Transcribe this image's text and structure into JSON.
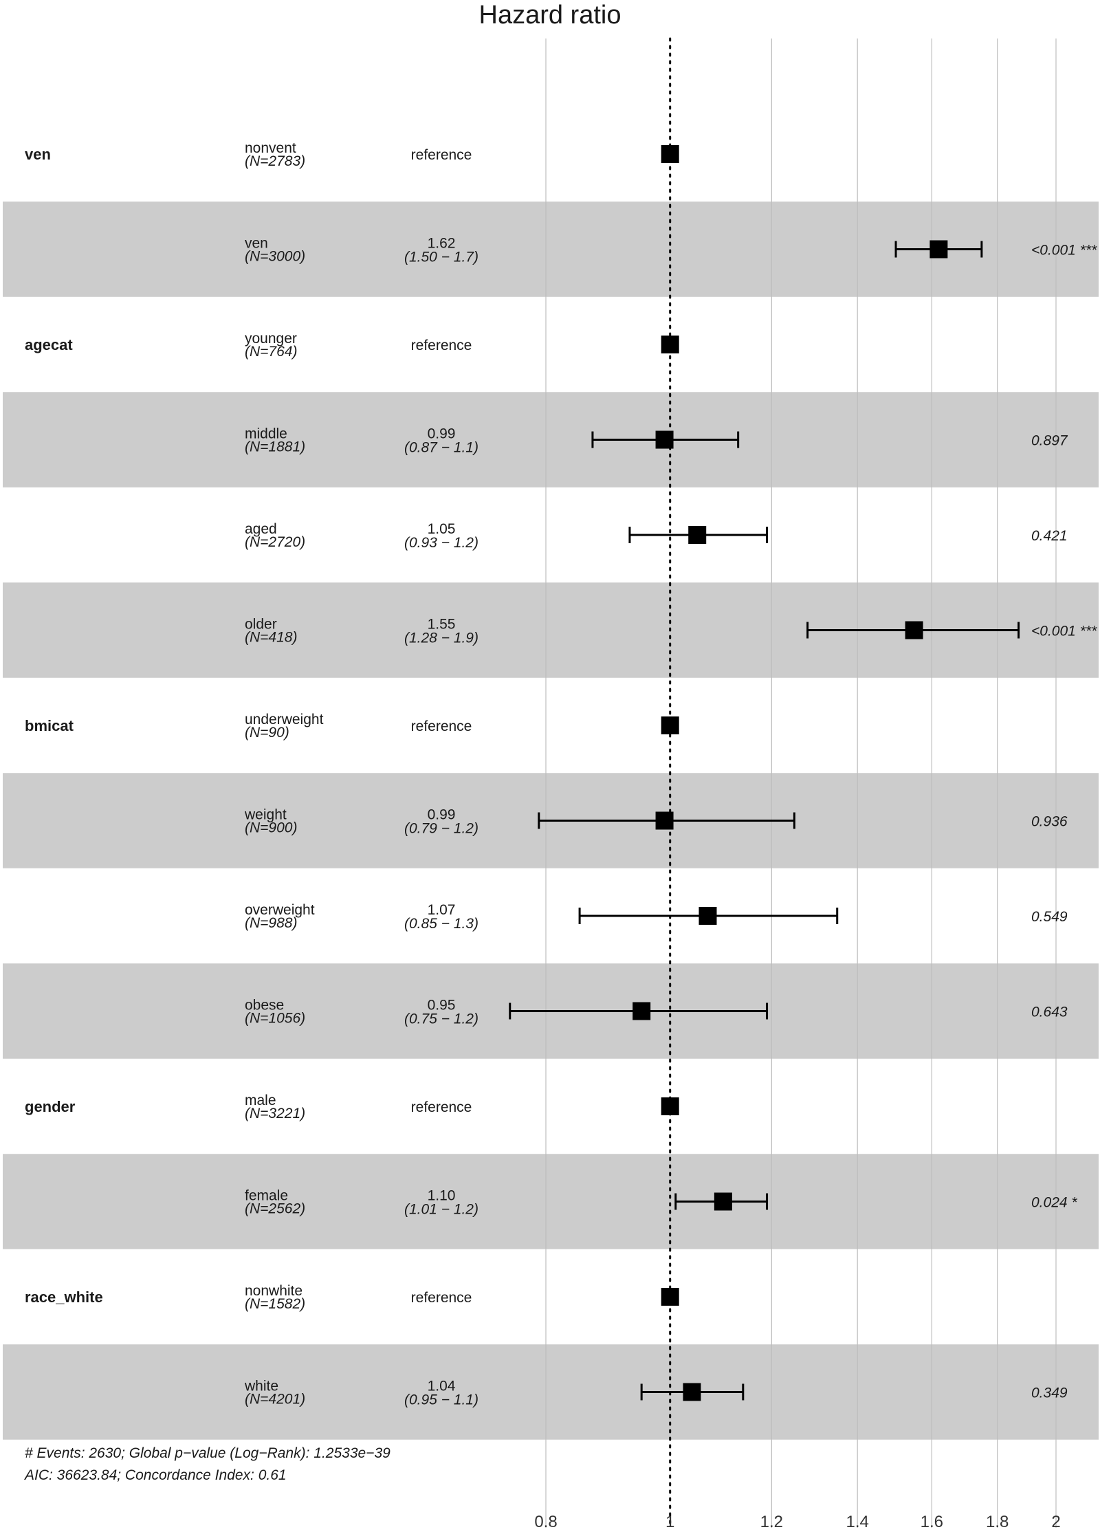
{
  "chart_data": {
    "type": "forest",
    "title": "Hazard ratio",
    "x_scale": "log",
    "xlim": [
      0.72,
      2.2
    ],
    "reference_line": 1,
    "x_ticks": [
      0.8,
      1,
      1.2,
      1.4,
      1.6,
      1.8,
      2
    ],
    "x_tick_labels": [
      "0.8",
      "1",
      "1.2",
      "1.4",
      "1.6",
      "1.8",
      "2"
    ],
    "grid": true,
    "rows": [
      {
        "variable": "ven",
        "level": "nonvent",
        "n": "(N=2783)",
        "estimate_label": "reference",
        "ci_label": "",
        "p_label": "",
        "hr": 1,
        "lo": null,
        "hi": null,
        "shaded": false
      },
      {
        "variable": "",
        "level": "ven",
        "n": "(N=3000)",
        "estimate_label": "1.62",
        "ci_label": "(1.50 − 1.7)",
        "p_label": "<0.001 ***",
        "hr": 1.62,
        "lo": 1.5,
        "hi": 1.75,
        "shaded": true
      },
      {
        "variable": "agecat",
        "level": "younger",
        "n": "(N=764)",
        "estimate_label": "reference",
        "ci_label": "",
        "p_label": "",
        "hr": 1,
        "lo": null,
        "hi": null,
        "shaded": false
      },
      {
        "variable": "",
        "level": "middle",
        "n": "(N=1881)",
        "estimate_label": "0.99",
        "ci_label": "(0.87 − 1.1)",
        "p_label": "0.897",
        "hr": 0.99,
        "lo": 0.87,
        "hi": 1.13,
        "shaded": true
      },
      {
        "variable": "",
        "level": "aged",
        "n": "(N=2720)",
        "estimate_label": "1.05",
        "ci_label": "(0.93 − 1.2)",
        "p_label": "0.421",
        "hr": 1.05,
        "lo": 0.93,
        "hi": 1.19,
        "shaded": false
      },
      {
        "variable": "",
        "level": "older",
        "n": "(N=418)",
        "estimate_label": "1.55",
        "ci_label": "(1.28 − 1.9)",
        "p_label": "<0.001 ***",
        "hr": 1.55,
        "lo": 1.28,
        "hi": 1.87,
        "shaded": true
      },
      {
        "variable": "bmicat",
        "level": "underweight",
        "n": "(N=90)",
        "estimate_label": "reference",
        "ci_label": "",
        "p_label": "",
        "hr": 1,
        "lo": null,
        "hi": null,
        "shaded": false
      },
      {
        "variable": "",
        "level": "weight",
        "n": "(N=900)",
        "estimate_label": "0.99",
        "ci_label": "(0.79 − 1.2)",
        "p_label": "0.936",
        "hr": 0.99,
        "lo": 0.79,
        "hi": 1.25,
        "shaded": true
      },
      {
        "variable": "",
        "level": "overweight",
        "n": "(N=988)",
        "estimate_label": "1.07",
        "ci_label": "(0.85 − 1.3)",
        "p_label": "0.549",
        "hr": 1.07,
        "lo": 0.85,
        "hi": 1.35,
        "shaded": false
      },
      {
        "variable": "",
        "level": "obese",
        "n": "(N=1056)",
        "estimate_label": "0.95",
        "ci_label": "(0.75 − 1.2)",
        "p_label": "0.643",
        "hr": 0.95,
        "lo": 0.75,
        "hi": 1.19,
        "shaded": true
      },
      {
        "variable": "gender",
        "level": "male",
        "n": "(N=3221)",
        "estimate_label": "reference",
        "ci_label": "",
        "p_label": "",
        "hr": 1,
        "lo": null,
        "hi": null,
        "shaded": false
      },
      {
        "variable": "",
        "level": "female",
        "n": "(N=2562)",
        "estimate_label": "1.10",
        "ci_label": "(1.01 − 1.2)",
        "p_label": "0.024 *",
        "hr": 1.1,
        "lo": 1.01,
        "hi": 1.19,
        "shaded": true
      },
      {
        "variable": "race_white",
        "level": "nonwhite",
        "n": "(N=1582)",
        "estimate_label": "reference",
        "ci_label": "",
        "p_label": "",
        "hr": 1,
        "lo": null,
        "hi": null,
        "shaded": false
      },
      {
        "variable": "",
        "level": "white",
        "n": "(N=4201)",
        "estimate_label": "1.04",
        "ci_label": "(0.95 − 1.1)",
        "p_label": "0.349",
        "hr": 1.04,
        "lo": 0.95,
        "hi": 1.14,
        "shaded": true
      }
    ],
    "footnote": [
      "# Events: 2630; Global p−value (Log−Rank): 1.2533e−39",
      "AIC: 36623.84; Concordance Index: 0.61"
    ]
  },
  "colors": {
    "shade": "#cccccc",
    "grid": "#bdbdbd",
    "mark": "#000000",
    "text": "#1a1a1a"
  }
}
